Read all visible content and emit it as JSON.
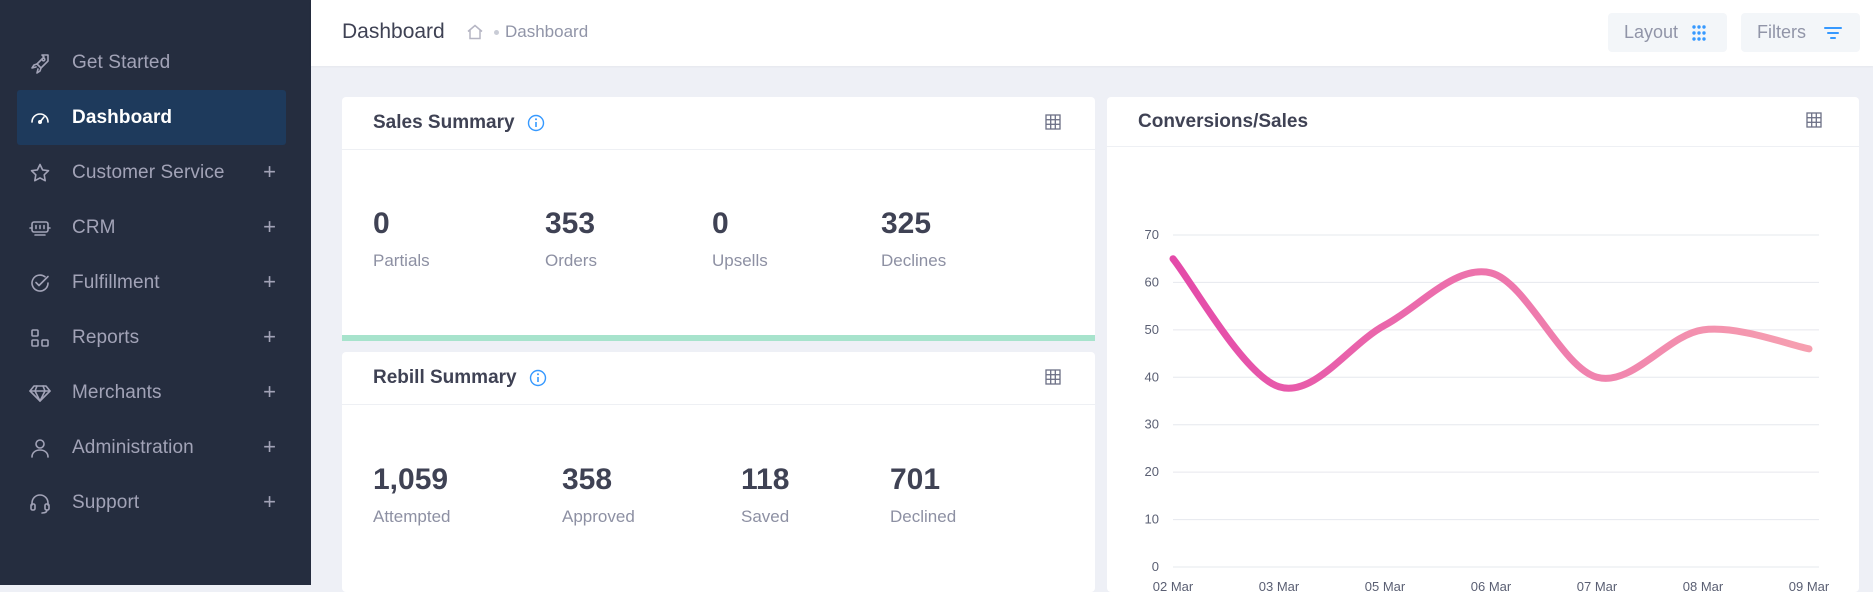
{
  "sidebar": {
    "items": [
      {
        "label": "Get Started",
        "icon": "rocket-icon",
        "active": false,
        "expandable": false
      },
      {
        "label": "Dashboard",
        "icon": "speedometer-icon",
        "active": true,
        "expandable": false
      },
      {
        "label": "Customer Service",
        "icon": "star-icon",
        "active": false,
        "expandable": true
      },
      {
        "label": "CRM",
        "icon": "crm-icon",
        "active": false,
        "expandable": true
      },
      {
        "label": "Fulfillment",
        "icon": "check-circle-icon",
        "active": false,
        "expandable": true
      },
      {
        "label": "Reports",
        "icon": "blocks-icon",
        "active": false,
        "expandable": true
      },
      {
        "label": "Merchants",
        "icon": "diamond-icon",
        "active": false,
        "expandable": true
      },
      {
        "label": "Administration",
        "icon": "user-icon",
        "active": false,
        "expandable": true
      },
      {
        "label": "Support",
        "icon": "headset-icon",
        "active": false,
        "expandable": true
      }
    ],
    "expand_symbol": "+"
  },
  "header": {
    "title": "Dashboard",
    "breadcrumb": "Dashboard",
    "layout_label": "Layout",
    "filters_label": "Filters"
  },
  "sales_summary": {
    "title": "Sales Summary",
    "stats": [
      {
        "value": "0",
        "label": "Partials"
      },
      {
        "value": "353",
        "label": "Orders"
      },
      {
        "value": "0",
        "label": "Upsells"
      },
      {
        "value": "325",
        "label": "Declines"
      }
    ]
  },
  "rebill_summary": {
    "title": "Rebill Summary",
    "stats": [
      {
        "value": "1,059",
        "label": "Attempted"
      },
      {
        "value": "358",
        "label": "Approved"
      },
      {
        "value": "118",
        "label": "Saved"
      },
      {
        "value": "701",
        "label": "Declined"
      }
    ]
  },
  "conversions": {
    "title": "Conversions/Sales"
  },
  "colors": {
    "sidebar_bg": "#252d3f",
    "active_item_bg": "#1e3a5c",
    "accent_blue": "#3699ff",
    "line_start": "#e44aa9",
    "line_end": "#f6a0b0",
    "progress_green": "#a7e3cc"
  },
  "chart_data": {
    "type": "line",
    "title": "",
    "xlabel": "",
    "ylabel": "",
    "categories": [
      "02 Mar",
      "03 Mar",
      "05 Mar",
      "06 Mar",
      "07 Mar",
      "08 Mar",
      "09 Mar"
    ],
    "y_ticks": [
      "0",
      "10",
      "20",
      "30",
      "40",
      "50",
      "60",
      "70"
    ],
    "ylim": [
      0,
      70
    ],
    "grid": true,
    "series": [
      {
        "values": [
          65,
          38,
          51,
          62,
          40,
          50,
          46
        ]
      }
    ]
  }
}
